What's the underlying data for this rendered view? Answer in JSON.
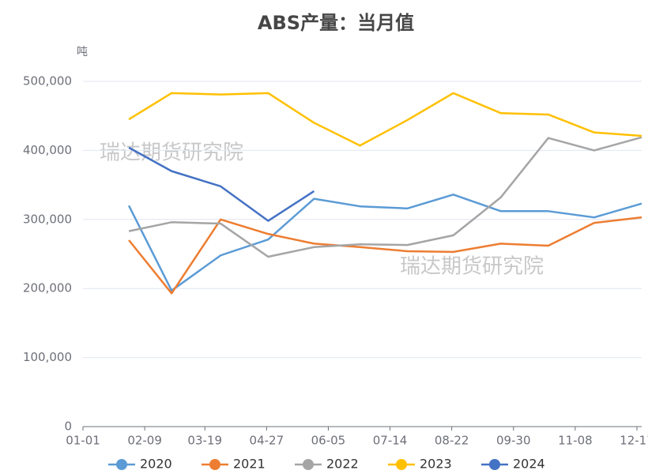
{
  "chart_data": {
    "type": "line",
    "title": "ABS产量：当月值",
    "y_label": "吨",
    "watermarks": [
      "瑞达期货研究院",
      "瑞达期货研究院"
    ],
    "x": [
      "01-30",
      "02-26",
      "03-29",
      "04-28",
      "05-27",
      "06-25",
      "07-25",
      "08-23",
      "09-22",
      "10-22",
      "11-20",
      "12-20"
    ],
    "xlim": [
      "01-01",
      "12-20"
    ],
    "xticks": [
      "01-01",
      "02-09",
      "03-19",
      "04-27",
      "06-05",
      "07-14",
      "08-22",
      "09-30",
      "11-08",
      "12-17"
    ],
    "ylim": [
      0,
      500000
    ],
    "yticks": [
      0,
      {
        "value": 100000,
        "label": "100,000"
      },
      {
        "value": 200000,
        "label": "200,000"
      },
      {
        "value": 300000,
        "label": "300,000"
      },
      {
        "value": 400000,
        "label": "400,000"
      },
      {
        "value": 500000,
        "label": "500,000"
      }
    ],
    "grid": true,
    "legend": "bottom",
    "series": [
      {
        "name": "2020",
        "color": "#5b9bd5",
        "values": [
          320000,
          197000,
          248000,
          271000,
          330000,
          319000,
          316000,
          336000,
          312000,
          312000,
          303000,
          323000
        ]
      },
      {
        "name": "2021",
        "color": "#ed7d31",
        "values": [
          270000,
          193000,
          300000,
          279000,
          265000,
          260000,
          254000,
          253000,
          265000,
          262000,
          295000,
          303000
        ]
      },
      {
        "name": "2022",
        "color": "#a5a5a5",
        "values": [
          283000,
          296000,
          294000,
          246000,
          260000,
          264000,
          263000,
          277000,
          332000,
          418000,
          400000,
          419000
        ]
      },
      {
        "name": "2023",
        "color": "#ffc000",
        "values": [
          445000,
          483000,
          481000,
          483000,
          440000,
          407000,
          444000,
          483000,
          454000,
          452000,
          426000,
          421000
        ]
      },
      {
        "name": "2024",
        "color": "#4472c4",
        "values": [
          404000,
          370000,
          348000,
          298000,
          341000,
          null,
          null,
          null,
          null,
          null,
          null,
          null
        ]
      }
    ]
  }
}
